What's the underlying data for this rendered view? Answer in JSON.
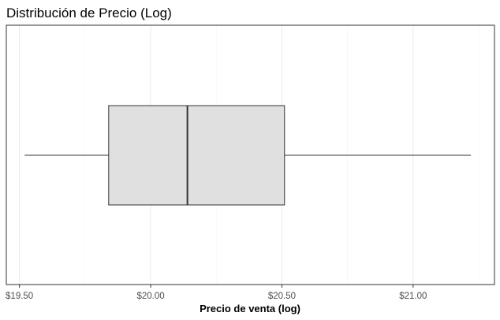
{
  "chart_data": {
    "type": "boxplot",
    "title": "Distribución de Precio (Log)",
    "xlabel": "Precio de venta (log)",
    "ylabel": "",
    "xlim": [
      19.45,
      21.31
    ],
    "ticks": [
      19.5,
      20.0,
      20.5,
      21.0
    ],
    "tick_labels": [
      "$19.50",
      "$20.00",
      "$20.50",
      "$21.00"
    ],
    "minor_ticks": [
      19.75,
      20.25,
      20.75,
      21.25
    ],
    "box": {
      "whisker_low": 19.52,
      "q1": 19.84,
      "median": 20.14,
      "q3": 20.51,
      "whisker_high": 21.22
    },
    "grid": true,
    "legend": "none"
  },
  "colors": {
    "box_fill": "#e0e0e0",
    "box_stroke": "#333333",
    "grid_major": "#ebebeb",
    "grid_minor": "#f4f4f4",
    "panel_border": "#333333",
    "tick_label": "#4d4d4d"
  }
}
